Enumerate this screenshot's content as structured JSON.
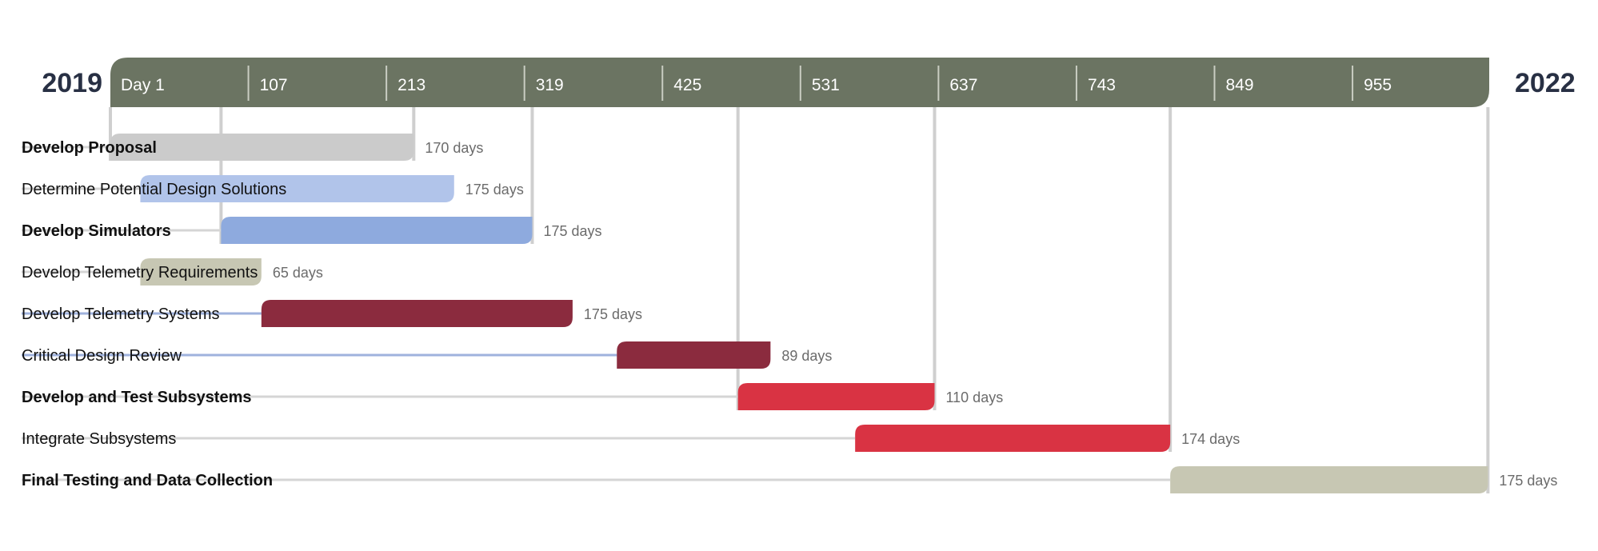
{
  "chart_data": {
    "type": "gantt",
    "start_label": "2019",
    "end_label": "2022",
    "axis_ticks": [
      {
        "day": 1,
        "label": "Day 1"
      },
      {
        "day": 107,
        "label": "107"
      },
      {
        "day": 213,
        "label": "213"
      },
      {
        "day": 319,
        "label": "319"
      },
      {
        "day": 425,
        "label": "425"
      },
      {
        "day": 531,
        "label": "531"
      },
      {
        "day": 637,
        "label": "637"
      },
      {
        "day": 743,
        "label": "743"
      },
      {
        "day": 849,
        "label": "849"
      },
      {
        "day": 955,
        "label": "955"
      }
    ],
    "axis_range": [
      1,
      1060
    ],
    "tasks": [
      {
        "name": "Develop Proposal",
        "start": 1,
        "end": 234,
        "duration_label": "170 days",
        "color": "#cbcbcb",
        "bold": true
      },
      {
        "name": "Determine Potential Design Solutions",
        "start": 24,
        "end": 265,
        "duration_label": "175 days",
        "color": "#b1c4ea",
        "bold": false
      },
      {
        "name": "Develop Simulators",
        "start": 86,
        "end": 325,
        "duration_label": "175 days",
        "color": "#8eaade",
        "bold": true
      },
      {
        "name": "Develop Telemetry Requirements",
        "start": 24,
        "end": 117,
        "duration_label": "65 days",
        "color": "#c7c7b3",
        "bold": false
      },
      {
        "name": "Develop Telemetry Systems",
        "start": 117,
        "end": 356,
        "duration_label": "175 days",
        "color": "#8b2b3e",
        "bold": false
      },
      {
        "name": "Critical Design Review",
        "start": 390,
        "end": 508,
        "duration_label": "89 days",
        "color": "#8b2b3e",
        "bold": false
      },
      {
        "name": "Develop and Test Subsystems",
        "start": 483,
        "end": 634,
        "duration_label": "110 days",
        "color": "#d93343",
        "bold": true
      },
      {
        "name": "Integrate Subsystems",
        "start": 573,
        "end": 815,
        "duration_label": "174 days",
        "color": "#d93343",
        "bold": false
      },
      {
        "name": "Final Testing and Data Collection",
        "start": 815,
        "end": 1059,
        "duration_label": "175 days",
        "color": "#c7c7b3",
        "bold": true
      }
    ],
    "colors": {
      "header_bar": "#6b7462",
      "year_text": "#283044",
      "connector": "#cfcfcf",
      "leader_blue": "#9fb2dd",
      "leader_gray": "#d5d5d5"
    }
  }
}
